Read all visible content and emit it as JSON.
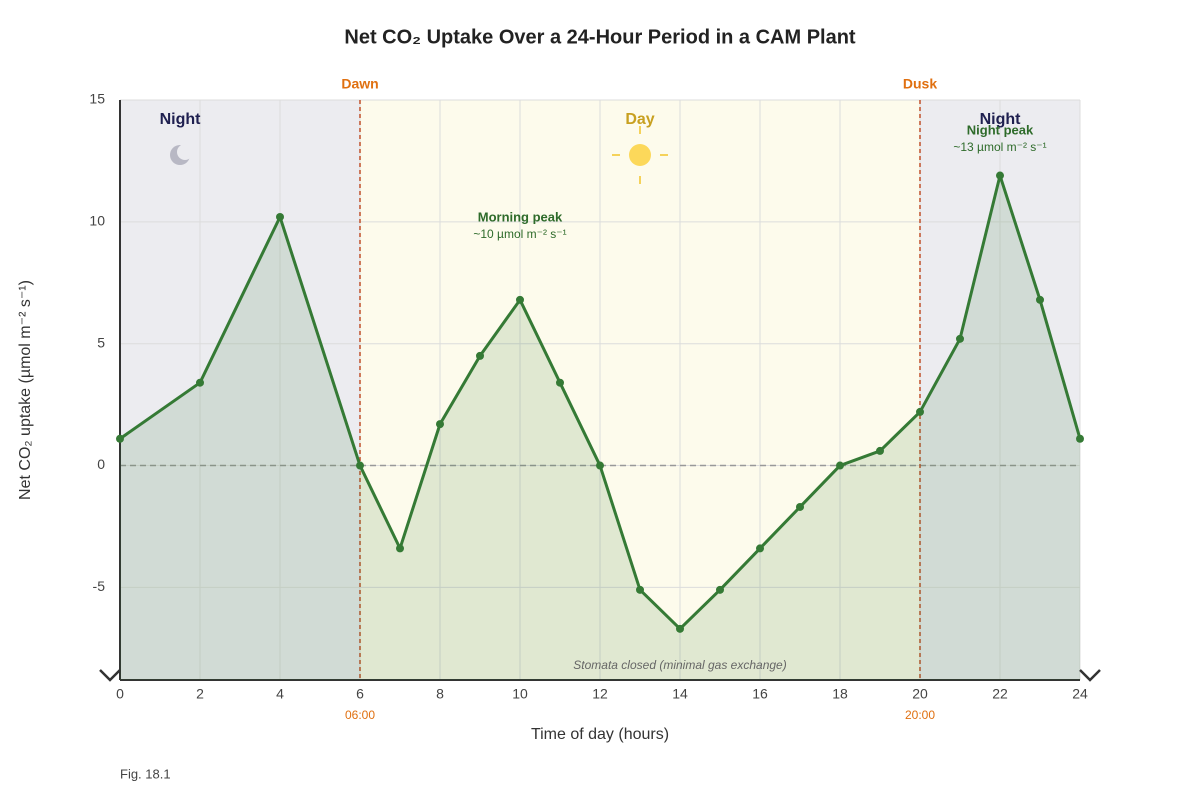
{
  "chart_data": {
    "type": "line",
    "title": "Net CO₂ Uptake Over a 24-Hour Period in a CAM Plant",
    "x_label": "Time of day (hours)",
    "y_label": "Net CO₂ uptake (µmol m⁻² s⁻¹)",
    "x": [
      0,
      2,
      4,
      6,
      7,
      8,
      9,
      10,
      11,
      12,
      13,
      14,
      15,
      16,
      17,
      18,
      19,
      20,
      21,
      22,
      23,
      24
    ],
    "values": [
      1.1,
      3.4,
      10.2,
      0,
      -3.4,
      1.7,
      4.5,
      6.8,
      3.4,
      0,
      -5.1,
      -6.7,
      -5.1,
      -3.4,
      -1.7,
      0,
      0.6,
      2.2,
      5.2,
      11.9,
      6.8,
      1.1
    ],
    "color": "#357a35",
    "xlim": [
      0,
      24
    ],
    "xticks": [
      0,
      2,
      4,
      6,
      8,
      10,
      12,
      14,
      16,
      18,
      20,
      22,
      24
    ],
    "ylim": [
      -8.8,
      15
    ],
    "yticks": [
      -5,
      0,
      5,
      10,
      15
    ],
    "grid": true,
    "dawn": {
      "x": 6,
      "label": "Dawn",
      "time": "06:00"
    },
    "dusk": {
      "x": 20,
      "label": "Dusk",
      "time": "20:00"
    },
    "regions": [
      "Night",
      "Day",
      "Night"
    ],
    "annotations": [
      {
        "title": "Morning peak",
        "detail": "~10 µmol m⁻² s⁻¹"
      },
      {
        "title": "Night peak",
        "detail": "~13 µmol m⁻² s⁻¹"
      },
      {
        "title": "Stomata closed (minimal gas exchange)"
      }
    ],
    "figure_label": "Fig. 18.1"
  }
}
